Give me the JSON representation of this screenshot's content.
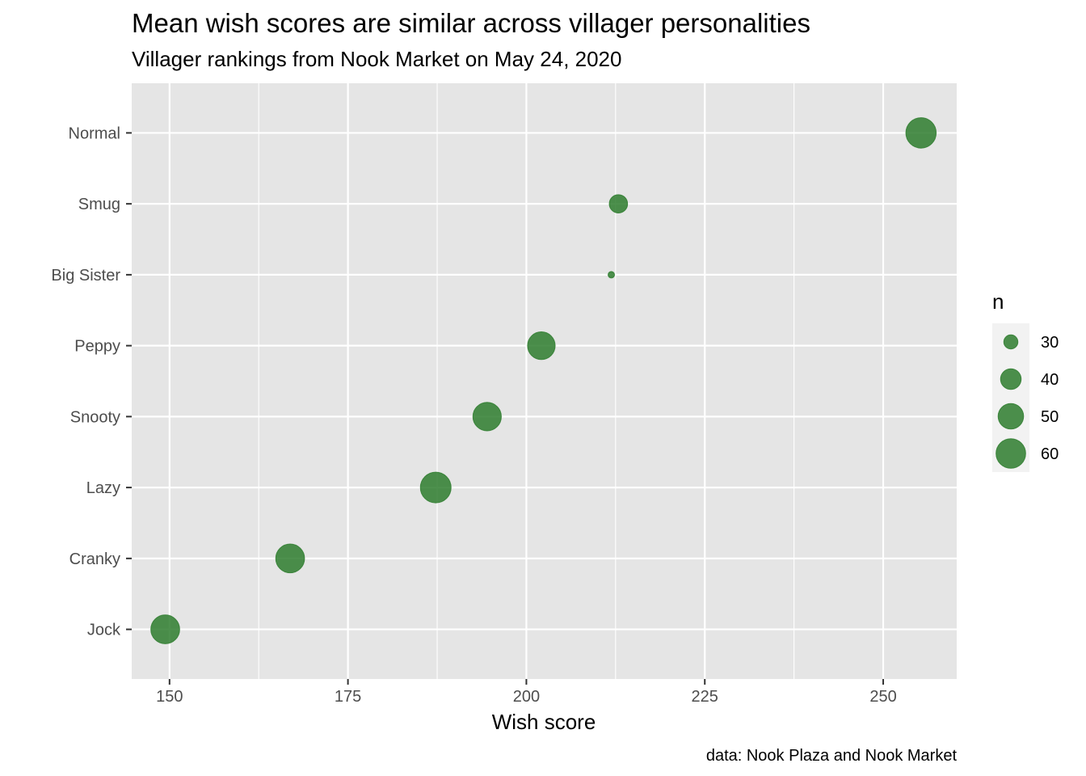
{
  "chart_data": {
    "type": "scatter",
    "title": "Mean wish scores are similar across villager personalities",
    "subtitle": "Villager rankings from Nook Market on May 24, 2020",
    "xlabel": "Wish score",
    "ylabel": "",
    "caption": "data: Nook Plaza and Nook Market",
    "xlim": [
      144.7,
      260.3
    ],
    "x_ticks": [
      150,
      175,
      200,
      225,
      250
    ],
    "x_tick_labels": [
      "150",
      "175",
      "200",
      "225",
      "250"
    ],
    "categories": [
      "Jock",
      "Cranky",
      "Lazy",
      "Snooty",
      "Peppy",
      "Big Sister",
      "Smug",
      "Normal"
    ],
    "points": [
      {
        "category": "Jock",
        "x": 149.4,
        "n": 58
      },
      {
        "category": "Cranky",
        "x": 166.9,
        "n": 58
      },
      {
        "category": "Lazy",
        "x": 187.3,
        "n": 63
      },
      {
        "category": "Snooty",
        "x": 194.5,
        "n": 57
      },
      {
        "category": "Peppy",
        "x": 202.1,
        "n": 55
      },
      {
        "category": "Big Sister",
        "x": 211.9,
        "n": 23
      },
      {
        "category": "Smug",
        "x": 212.9,
        "n": 36
      },
      {
        "category": "Normal",
        "x": 255.3,
        "n": 62
      }
    ],
    "size_legend": {
      "title": "n",
      "values": [
        30,
        40,
        50,
        60
      ],
      "labels": [
        "30",
        "40",
        "50",
        "60"
      ]
    },
    "point_color": "#2e7d2e",
    "point_opacity": 0.85,
    "panel_background": "#e5e5e5",
    "grid_color": "#ffffff",
    "grid": true,
    "legend_position": "right"
  }
}
